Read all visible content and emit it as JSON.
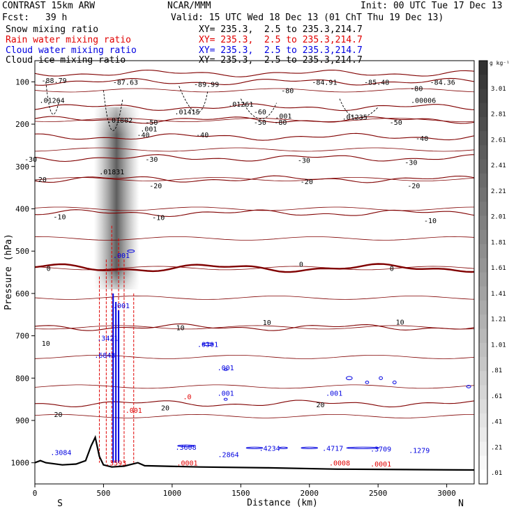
{
  "header": {
    "model": "CONTRAST 15km ARW",
    "org": "NCAR/MMM",
    "init": "Init: 00 UTC Tue 17 Dec 13",
    "fcst_label": "Fcst:",
    "fcst_value": "39 h",
    "valid": "Valid: 15 UTC Wed 18 Dec 13 (01 ChT Thu 19 Dec 13)"
  },
  "fields": [
    {
      "name": "Snow mixing ratio",
      "xy": "XY= 235.3,  2.5 to 235.3,214.7",
      "color": "#000000"
    },
    {
      "name": "Rain water mixing ratio",
      "xy": "XY= 235.3,  2.5 to 235.3,214.7",
      "color": "#e00000"
    },
    {
      "name": "Cloud water mixing ratio",
      "xy": "XY= 235.3,  2.5 to 235.3,214.7",
      "color": "#0000e0"
    },
    {
      "name": "Cloud ice mixing ratio",
      "xy": "XY= 235.3,  2.5 to 235.3,214.7",
      "color": "#000000"
    }
  ],
  "chart_data": {
    "type": "contour",
    "xlabel": "Distance (km)",
    "ylabel": "Pressure (hPa)",
    "x_ticks": [
      0,
      500,
      1000,
      1500,
      2000,
      2500,
      3000
    ],
    "xlim": [
      0,
      3200
    ],
    "y_ticks": [
      100,
      200,
      300,
      400,
      500,
      600,
      700,
      800,
      900,
      1000
    ],
    "ylim": [
      1050,
      50
    ],
    "x_end_labels": {
      "left": "S",
      "right": "N"
    },
    "colorbar": {
      "unit": "g kg⁻¹",
      "labels": [
        "3.01",
        "2.81",
        "2.61",
        "2.41",
        "2.21",
        "2.01",
        "1.81",
        "1.61",
        "1.41",
        "1.21",
        "1.01",
        ".81",
        ".61",
        ".41",
        ".21",
        ".01"
      ],
      "values": [
        3.01,
        2.81,
        2.61,
        2.41,
        2.21,
        2.01,
        1.81,
        1.61,
        1.41,
        1.21,
        1.01,
        0.81,
        0.61,
        0.41,
        0.21,
        0.01
      ]
    },
    "temperature_contours": {
      "color": "#800000",
      "levels": [
        {
          "value": -80,
          "p": 80
        },
        {
          "value": -70,
          "p": 100
        },
        {
          "value": -60,
          "p": 160
        },
        {
          "value": -50,
          "p": 190
        },
        {
          "value": -40,
          "p": 230
        },
        {
          "value": -30,
          "p": 280
        },
        {
          "value": -20,
          "p": 330
        },
        {
          "value": -10,
          "p": 410
        },
        {
          "value": 0,
          "p": 540
        },
        {
          "value": 10,
          "p": 680
        },
        {
          "value": 20,
          "p": 860
        }
      ],
      "labels": [
        {
          "text": "-80",
          "x": 1840,
          "p": 120
        },
        {
          "text": "-80",
          "x": 2780,
          "p": 115
        },
        {
          "text": "-60",
          "x": 1640,
          "p": 170
        },
        {
          "text": "-50",
          "x": 1640,
          "p": 195
        },
        {
          "text": "-80",
          "x": 1790,
          "p": 195
        },
        {
          "text": "-50",
          "x": 850,
          "p": 195
        },
        {
          "text": "-50",
          "x": 2630,
          "p": 195
        },
        {
          "text": "-40",
          "x": 790,
          "p": 225
        },
        {
          "text": "-40",
          "x": 1220,
          "p": 225
        },
        {
          "text": "-40",
          "x": 2820,
          "p": 233
        },
        {
          "text": "-30",
          "x": 850,
          "p": 282
        },
        {
          "text": "-30",
          "x": 1960,
          "p": 285
        },
        {
          "text": "-30",
          "x": 2740,
          "p": 290
        },
        {
          "text": "-30",
          "x": -30,
          "p": 282
        },
        {
          "text": "-20",
          "x": 40,
          "p": 330
        },
        {
          "text": "-20",
          "x": 880,
          "p": 345
        },
        {
          "text": "-20",
          "x": 1980,
          "p": 335
        },
        {
          "text": "-20",
          "x": 2760,
          "p": 345
        },
        {
          "text": "-10",
          "x": 180,
          "p": 418
        },
        {
          "text": "-10",
          "x": 900,
          "p": 420
        },
        {
          "text": "-10",
          "x": 2880,
          "p": 427
        },
        {
          "text": "0",
          "x": 100,
          "p": 540
        },
        {
          "text": "0",
          "x": 1940,
          "p": 530
        },
        {
          "text": "0",
          "x": 2600,
          "p": 540
        },
        {
          "text": "10",
          "x": 80,
          "p": 717
        },
        {
          "text": "10",
          "x": 1060,
          "p": 680
        },
        {
          "text": "10",
          "x": 1690,
          "p": 668
        },
        {
          "text": "10",
          "x": 2660,
          "p": 667
        },
        {
          "text": "20",
          "x": 170,
          "p": 885
        },
        {
          "text": "20",
          "x": 950,
          "p": 870
        },
        {
          "text": "20",
          "x": 2080,
          "p": 862
        }
      ]
    },
    "extrema": [
      {
        "text": "-88.79",
        "x": 140,
        "p": 96,
        "color": "#000000"
      },
      {
        "text": "-87.63",
        "x": 660,
        "p": 100,
        "color": "#000000"
      },
      {
        "text": "-89.99",
        "x": 1250,
        "p": 105,
        "color": "#000000"
      },
      {
        "text": "-84.91",
        "x": 2110,
        "p": 100,
        "color": "#000000"
      },
      {
        "text": "-85.48",
        "x": 2490,
        "p": 100,
        "color": "#000000"
      },
      {
        "text": "-84.36",
        "x": 2970,
        "p": 100,
        "color": "#000000"
      },
      {
        "text": ".01264",
        "x": 125,
        "p": 143,
        "color": "#000000"
      },
      {
        "text": ".01802",
        "x": 620,
        "p": 190,
        "color": "#000000"
      },
      {
        "text": ".01415",
        "x": 1110,
        "p": 170,
        "color": "#000000"
      },
      {
        "text": ".01261",
        "x": 1500,
        "p": 152,
        "color": "#000000"
      },
      {
        "text": ".00006",
        "x": 2830,
        "p": 143,
        "color": "#000000"
      },
      {
        "text": ".01235",
        "x": 2330,
        "p": 183,
        "color": "#000000"
      },
      {
        "text": ".01831",
        "x": 560,
        "p": 312,
        "color": "#000000"
      },
      {
        "text": ".001",
        "x": 830,
        "p": 211,
        "color": "#000000"
      },
      {
        "text": ".001",
        "x": 1810,
        "p": 180,
        "color": "#000000"
      },
      {
        "text": ".001",
        "x": 630,
        "p": 510,
        "color": "#0000e0"
      },
      {
        "text": ".001",
        "x": 630,
        "p": 628,
        "color": "#0000e0"
      },
      {
        "text": ".3421",
        "x": 530,
        "p": 705,
        "color": "#0000e0"
      },
      {
        "text": ".6848",
        "x": 510,
        "p": 745,
        "color": "#0000e0"
      },
      {
        "text": ".0301",
        "x": 1260,
        "p": 720,
        "color": "#0000e0"
      },
      {
        "text": ".001",
        "x": 1390,
        "p": 775,
        "color": "#0000e0"
      },
      {
        "text": ".001",
        "x": 1390,
        "p": 835,
        "color": "#0000e0"
      },
      {
        "text": ".001",
        "x": 2180,
        "p": 835,
        "color": "#0000e0"
      },
      {
        "text": ".3084",
        "x": 190,
        "p": 975,
        "color": "#0000e0"
      },
      {
        "text": ".3608",
        "x": 1100,
        "p": 963,
        "color": "#0000e0"
      },
      {
        "text": ".2864",
        "x": 1410,
        "p": 980,
        "color": "#0000e0"
      },
      {
        "text": ".4234",
        "x": 1710,
        "p": 965,
        "color": "#0000e0"
      },
      {
        "text": ".4717",
        "x": 2170,
        "p": 965,
        "color": "#0000e0"
      },
      {
        "text": ".3709",
        "x": 2520,
        "p": 967,
        "color": "#0000e0"
      },
      {
        "text": ".1279",
        "x": 2800,
        "p": 970,
        "color": "#0000e0"
      },
      {
        "text": ".0",
        "x": 1110,
        "p": 843,
        "color": "#e00000"
      },
      {
        "text": ".001",
        "x": 720,
        "p": 875,
        "color": "#e00000"
      },
      {
        "text": ".3593",
        "x": 590,
        "p": 1000,
        "color": "#e00000"
      },
      {
        "text": ".0001",
        "x": 1110,
        "p": 1000,
        "color": "#e00000"
      },
      {
        "text": ".0008",
        "x": 2220,
        "p": 1000,
        "color": "#e00000"
      },
      {
        "text": ".0001",
        "x": 2520,
        "p": 1002,
        "color": "#e00000"
      }
    ]
  }
}
